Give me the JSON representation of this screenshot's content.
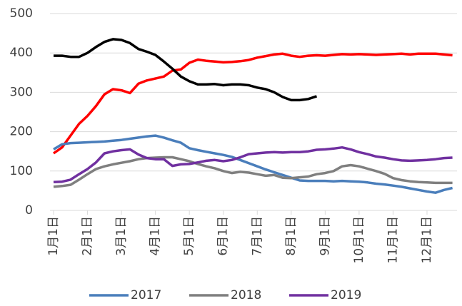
{
  "chart_data": {
    "type": "line",
    "categories": [
      "1月1日",
      null,
      null,
      null,
      "2月1日",
      null,
      null,
      null,
      "3月1日",
      null,
      null,
      null,
      "4月1日",
      null,
      null,
      null,
      "5月1日",
      null,
      null,
      null,
      "6月1日",
      null,
      null,
      null,
      "7月1日",
      null,
      null,
      null,
      "8月1日",
      null,
      null,
      null,
      "9月1日",
      null,
      null,
      null,
      "10月1日",
      null,
      null,
      null,
      "11月1日",
      null,
      null,
      null,
      "12月1日",
      null,
      null,
      null
    ],
    "series": [
      {
        "color": "#ff0000",
        "values": [
          145,
          160,
          190,
          220,
          240,
          265,
          295,
          308,
          305,
          298,
          322,
          330,
          335,
          340,
          355,
          358,
          375,
          383,
          380,
          378,
          376,
          377,
          379,
          382,
          388,
          392,
          396,
          398,
          393,
          390,
          393,
          394,
          393,
          395,
          397,
          396,
          397,
          396,
          395,
          396,
          397,
          398,
          396,
          398,
          398,
          398,
          396,
          394
        ]
      },
      {
        "color": "#000000",
        "values": [
          393,
          393,
          390,
          390,
          400,
          415,
          428,
          435,
          433,
          425,
          410,
          403,
          395,
          378,
          360,
          340,
          328,
          320,
          320,
          321,
          318,
          320,
          320,
          318,
          312,
          308,
          300,
          288,
          280,
          280,
          283,
          290,
          null,
          null,
          null,
          null,
          null,
          null,
          null,
          null,
          null,
          null,
          null,
          null,
          null,
          null,
          null,
          null
        ]
      },
      {
        "name": "2017",
        "color": "#4a7ebb",
        "values": [
          155,
          168,
          171,
          172,
          173,
          174,
          175,
          177,
          179,
          182,
          185,
          188,
          190,
          185,
          178,
          172,
          158,
          153,
          149,
          145,
          141,
          136,
          128,
          120,
          112,
          104,
          97,
          90,
          83,
          76,
          75,
          75,
          75,
          74,
          75,
          74,
          73,
          71,
          68,
          66,
          63,
          60,
          56,
          52,
          48,
          45,
          52,
          57
        ]
      },
      {
        "name": "2018",
        "color": "#7f7f7f",
        "values": [
          60,
          62,
          65,
          78,
          92,
          105,
          112,
          117,
          121,
          125,
          130,
          133,
          134,
          135,
          135,
          130,
          125,
          118,
          112,
          107,
          100,
          95,
          98,
          96,
          92,
          88,
          90,
          83,
          82,
          84,
          86,
          92,
          95,
          100,
          112,
          115,
          112,
          106,
          100,
          93,
          82,
          77,
          74,
          72,
          71,
          70,
          70,
          70
        ]
      },
      {
        "name": "2019",
        "color": "#7030a0",
        "values": [
          72,
          73,
          78,
          92,
          105,
          122,
          145,
          150,
          153,
          155,
          142,
          133,
          130,
          130,
          113,
          117,
          118,
          122,
          126,
          128,
          125,
          128,
          135,
          143,
          145,
          147,
          148,
          147,
          148,
          148,
          150,
          154,
          155,
          157,
          160,
          155,
          148,
          143,
          137,
          134,
          130,
          127,
          126,
          127,
          128,
          130,
          133,
          134
        ]
      }
    ],
    "ylim": [
      0,
      500
    ],
    "yticks": [
      0,
      100,
      200,
      300,
      400,
      500
    ],
    "grid": true,
    "legend": "bottom"
  }
}
